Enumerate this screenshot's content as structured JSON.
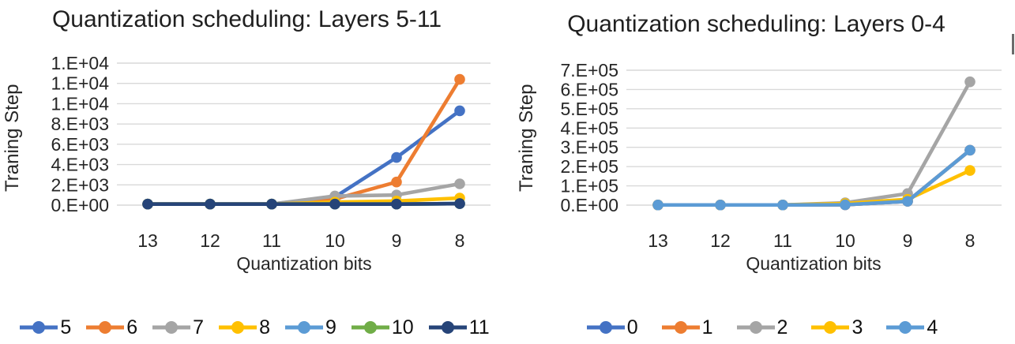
{
  "page": {
    "background": "#FFFFFF",
    "edge_artifact_color": "#6B6B6B"
  },
  "style": {
    "gridline_color": "#D9D9D9",
    "tick_label_color": "#262626",
    "title_color": "#1F1F1F",
    "legend_text_color": "#111111"
  },
  "chart_data": [
    {
      "type": "line",
      "title": "Quantization scheduling: Layers 5-11",
      "xlabel": "Quantization bits",
      "ylabel": "Traning Step",
      "categories": [
        "13",
        "12",
        "11",
        "10",
        "9",
        "8"
      ],
      "ylim": [
        0,
        14000
      ],
      "y_tick_step": 2000,
      "y_tick_labels": [
        "1.E+04",
        "1.E+04",
        "1.E+04",
        "8.E+03",
        "6.E+03",
        "4.E+03",
        "2.E+03",
        "0.E+00"
      ],
      "grid": true,
      "legend_position": "bottom",
      "series": [
        {
          "name": "5",
          "color": "#4472C4",
          "values": [
            100,
            100,
            100,
            800,
            4700,
            9300
          ]
        },
        {
          "name": "6",
          "color": "#ED7D31",
          "values": [
            100,
            100,
            100,
            600,
            2280,
            12400
          ]
        },
        {
          "name": "7",
          "color": "#A5A5A5",
          "values": [
            100,
            100,
            100,
            900,
            1000,
            2100
          ]
        },
        {
          "name": "8",
          "color": "#FFC000",
          "values": [
            100,
            100,
            100,
            300,
            400,
            700
          ]
        },
        {
          "name": "9",
          "color": "#5B9BD5",
          "values": [
            100,
            100,
            100,
            100,
            100,
            150
          ]
        },
        {
          "name": "10",
          "color": "#70AD47",
          "values": [
            100,
            100,
            100,
            100,
            100,
            150
          ]
        },
        {
          "name": "11",
          "color": "#264478",
          "values": [
            100,
            100,
            100,
            100,
            100,
            150
          ]
        }
      ]
    },
    {
      "type": "line",
      "title": "Quantization scheduling: Layers 0-4",
      "xlabel": "Quantization bits",
      "ylabel": "Traning Step",
      "categories": [
        "13",
        "12",
        "11",
        "10",
        "9",
        "8"
      ],
      "ylim": [
        0,
        700000
      ],
      "y_tick_step": 100000,
      "y_tick_labels": [
        "7.E+05",
        "6.E+05",
        "5.E+05",
        "4.E+05",
        "3.E+05",
        "2.E+05",
        "1.E+05",
        "0.E+00"
      ],
      "grid": true,
      "legend_position": "bottom",
      "series": [
        {
          "name": "0",
          "color": "#4472C4",
          "values": [
            1000,
            1000,
            1000,
            2000,
            20000,
            285000
          ]
        },
        {
          "name": "1",
          "color": "#ED7D31",
          "values": [
            1000,
            1000,
            1000,
            2000,
            20000,
            285000
          ]
        },
        {
          "name": "2",
          "color": "#A5A5A5",
          "values": [
            1000,
            1000,
            1000,
            12000,
            60000,
            640000
          ]
        },
        {
          "name": "3",
          "color": "#FFC000",
          "values": [
            1000,
            1000,
            1000,
            8000,
            30000,
            180000
          ]
        },
        {
          "name": "4",
          "color": "#5B9BD5",
          "values": [
            1000,
            1000,
            1000,
            2000,
            20000,
            285000
          ]
        }
      ]
    }
  ]
}
